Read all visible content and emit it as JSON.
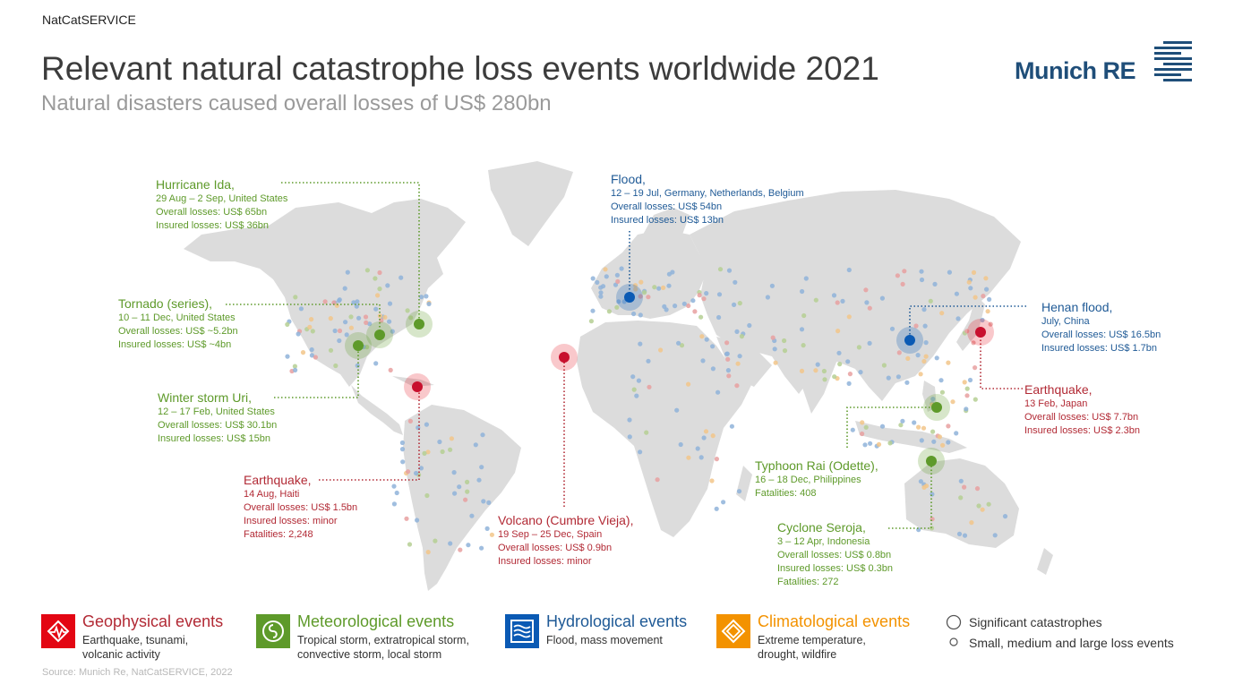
{
  "header": {
    "brand": "NatCatSERVICE",
    "title": "Relevant natural catastrophe loss events worldwide 2021",
    "subtitle": "Natural disasters caused overall losses of US$ 280bn",
    "logo_text": "Munich RE"
  },
  "events": {
    "ida": {
      "title": "Hurricane Ida,",
      "lines": [
        "29 Aug – 2 Sep, United States",
        "Overall losses: US$ 65bn",
        "Insured losses: US$ 36bn"
      ]
    },
    "tornado": {
      "title": "Tornado (series),",
      "lines": [
        "10 – 11 Dec, United States",
        "Overall losses: US$ ~5.2bn",
        "Insured losses: US$ ~4bn"
      ]
    },
    "uri": {
      "title": "Winter storm Uri,",
      "lines": [
        "12 – 17 Feb, United States",
        "Overall losses: US$ 30.1bn",
        "Insured losses: US$ 15bn"
      ]
    },
    "haiti": {
      "title": "Earthquake,",
      "lines": [
        "14 Aug, Haiti",
        "Overall losses: US$ 1.5bn",
        "Insured losses: minor",
        "Fatalities: 2,248"
      ]
    },
    "flood": {
      "title": "Flood,",
      "lines": [
        "12 – 19 Jul, Germany, Netherlands, Belgium",
        "Overall losses: US$ 54bn",
        "Insured losses: US$ 13bn"
      ]
    },
    "volcano": {
      "title": "Volcano (Cumbre Vieja),",
      "lines": [
        "19 Sep – 25 Dec, Spain",
        "Overall losses: US$ 0.9bn",
        "Insured losses: minor"
      ]
    },
    "henan": {
      "title": "Henan flood,",
      "lines": [
        "July, China",
        "Overall losses: US$ 16.5bn",
        "Insured losses: US$ 1.7bn"
      ]
    },
    "japan": {
      "title": "Earthquake,",
      "lines": [
        "13 Feb, Japan",
        "Overall losses: US$ 7.7bn",
        "Insured losses: US$ 2.3bn"
      ]
    },
    "rai": {
      "title": "Typhoon Rai (Odette),",
      "lines": [
        "16 – 18 Dec, Philippines",
        "Fatalities: 408"
      ]
    },
    "seroja": {
      "title": "Cyclone Seroja,",
      "lines": [
        "3 – 12 Apr, Indonesia",
        "Overall losses: US$ 0.8bn",
        "Insured losses: US$ 0.3bn",
        "Fatalities: 272"
      ]
    }
  },
  "legend": {
    "geo": {
      "title": "Geophysical events",
      "desc1": "Earthquake, tsunami,",
      "desc2": "volcanic activity",
      "color": "#e30613"
    },
    "met": {
      "title": "Meteorological events",
      "desc1": "Tropical storm, extratropical storm,",
      "desc2": "convective storm, local storm",
      "color": "#5e9a2a"
    },
    "hyd": {
      "title": "Hydrological events",
      "desc1": "Flood, mass movement",
      "desc2": "",
      "color": "#0a5ab4"
    },
    "cli": {
      "title": "Climatological events",
      "desc1": "Extreme temperature,",
      "desc2": "drought, wildfire",
      "color": "#f39200"
    },
    "significant": "Significant catastrophes",
    "small": "Small, medium and large loss events"
  },
  "source": "Source: Munich Re, NatCatSERVICE, 2022"
}
